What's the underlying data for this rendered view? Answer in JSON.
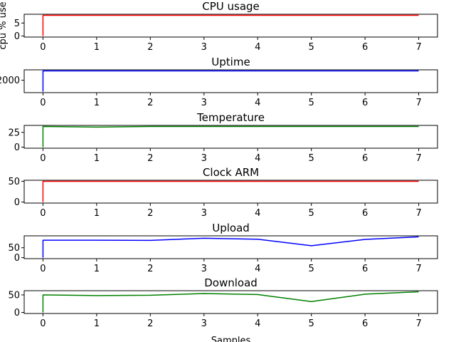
{
  "xlabel": "Samples",
  "chart_data": [
    {
      "type": "line",
      "title": "CPU usage",
      "ylabel": "cpu % use",
      "color": "#ff0000",
      "x": [
        0,
        0,
        1,
        2,
        3,
        4,
        5,
        6,
        7
      ],
      "values": [
        0,
        8,
        8,
        8,
        8,
        8,
        8,
        8,
        8
      ],
      "xlim": [
        -0.35,
        7.35
      ],
      "ylim": [
        -0.4,
        8.4
      ],
      "xticks": [
        0,
        1,
        2,
        3,
        4,
        5,
        6,
        7
      ],
      "yticks": [
        0,
        5
      ],
      "ytick_labels": [
        "0",
        "5"
      ]
    },
    {
      "type": "line",
      "title": "Uptime",
      "ylabel": "",
      "color": "#0000ff",
      "x": [
        0,
        0,
        1,
        2,
        3,
        4,
        5,
        6,
        7
      ],
      "values": [
        0,
        3650,
        3650,
        3650,
        3650,
        3650,
        3650,
        3650,
        3650
      ],
      "xlim": [
        -0.35,
        7.35
      ],
      "ylim": [
        -180,
        3830
      ],
      "xticks": [
        0,
        1,
        2,
        3,
        4,
        5,
        6,
        7
      ],
      "yticks": [
        2000
      ],
      "ytick_labels": [
        "2000"
      ]
    },
    {
      "type": "line",
      "title": "Temperature",
      "ylabel": "",
      "color": "#008000",
      "x": [
        0,
        0,
        1,
        2,
        3,
        4,
        5,
        6,
        7
      ],
      "values": [
        0,
        35,
        34,
        35,
        35,
        35,
        35,
        35,
        35
      ],
      "xlim": [
        -0.35,
        7.35
      ],
      "ylim": [
        -1.8,
        36.8
      ],
      "xticks": [
        0,
        1,
        2,
        3,
        4,
        5,
        6,
        7
      ],
      "yticks": [
        0,
        25
      ],
      "ytick_labels": [
        "0",
        "25"
      ]
    },
    {
      "type": "line",
      "title": "Clock ARM",
      "ylabel": "",
      "color": "#ff0000",
      "x": [
        0,
        0,
        1,
        2,
        3,
        4,
        5,
        6,
        7
      ],
      "values": [
        0,
        50,
        50,
        50,
        50,
        50,
        50,
        50,
        50
      ],
      "xlim": [
        -0.35,
        7.35
      ],
      "ylim": [
        -2.5,
        52.5
      ],
      "xticks": [
        0,
        1,
        2,
        3,
        4,
        5,
        6,
        7
      ],
      "yticks": [
        0,
        50
      ],
      "ytick_labels": [
        "0",
        "50"
      ]
    },
    {
      "type": "line",
      "title": "Upload",
      "ylabel": "",
      "color": "#0000ff",
      "x": [
        0,
        0,
        1,
        2,
        3,
        4,
        5,
        6,
        7
      ],
      "values": [
        0,
        88,
        88,
        87,
        98,
        93,
        60,
        92,
        105
      ],
      "xlim": [
        -0.35,
        7.35
      ],
      "ylim": [
        -5,
        110
      ],
      "xticks": [
        0,
        1,
        2,
        3,
        4,
        5,
        6,
        7
      ],
      "yticks": [
        0,
        50
      ],
      "ytick_labels": [
        "0",
        "50"
      ]
    },
    {
      "type": "line",
      "title": "Download",
      "ylabel": "",
      "color": "#008000",
      "x": [
        0,
        0,
        1,
        2,
        3,
        4,
        5,
        6,
        7
      ],
      "values": [
        0,
        50,
        48,
        49,
        54,
        51,
        31,
        52,
        59
      ],
      "xlim": [
        -0.35,
        7.35
      ],
      "ylim": [
        -3,
        62
      ],
      "xticks": [
        0,
        1,
        2,
        3,
        4,
        5,
        6,
        7
      ],
      "yticks": [
        0,
        50
      ],
      "ytick_labels": [
        "0",
        "50"
      ]
    }
  ]
}
